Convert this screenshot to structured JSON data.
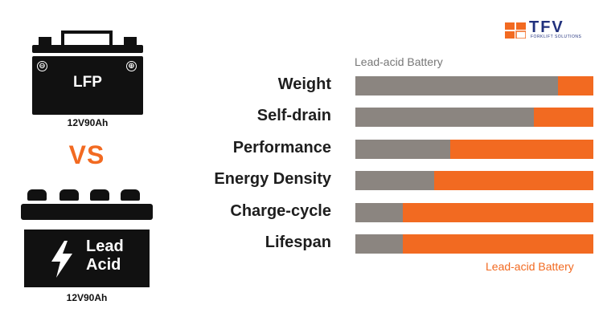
{
  "logo": {
    "text": "TFV",
    "subtitle": "FORKLIFT SOLUTIONS"
  },
  "left_panel": {
    "battery1": {
      "label": "LFP",
      "spec": "12V90Ah",
      "minus": "⊖",
      "plus": "⊕"
    },
    "vs": "VS",
    "battery2": {
      "label_line1": "Lead",
      "label_line2": "Acid",
      "spec": "12V90Ah"
    }
  },
  "chart_data": {
    "type": "bar",
    "orientation": "horizontal",
    "stacked": true,
    "categories": [
      "Weight",
      "Self-drain",
      "Performance",
      "Energy Density",
      "Charge-cycle",
      "Lifespan"
    ],
    "series": [
      {
        "name": "Lead-acid Battery",
        "color": "#8b8580",
        "values": [
          85,
          75,
          40,
          33,
          20,
          20
        ]
      },
      {
        "name": "Lead-acid Battery",
        "color": "#f26a21",
        "values": [
          15,
          25,
          60,
          67,
          80,
          80
        ]
      }
    ],
    "xlim": [
      0,
      100
    ],
    "legend": {
      "top_label": "Lead-acid Battery",
      "bottom_label": "Lead-acid Battery"
    }
  }
}
